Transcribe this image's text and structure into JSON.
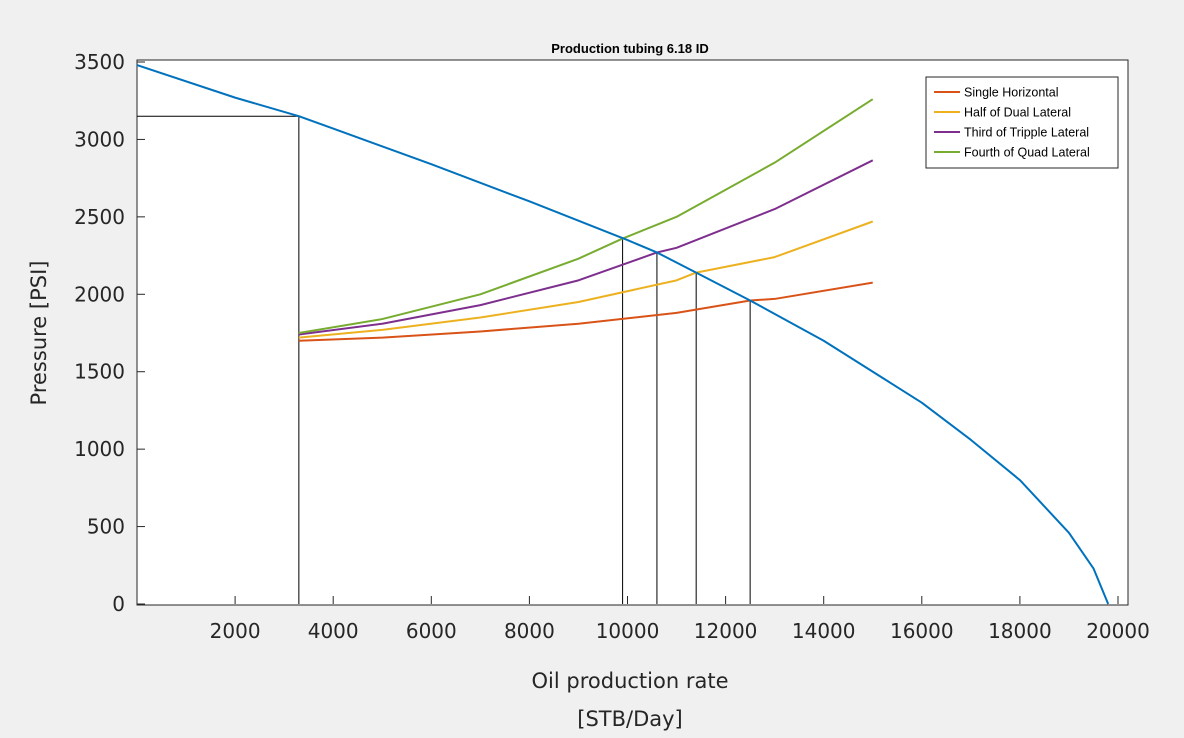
{
  "chart_data": {
    "type": "line",
    "title": "Production tubing 6.18 ID",
    "xlabel": [
      "Oil production rate",
      "[STB/Day]"
    ],
    "ylabel": "Pressure [PSI]",
    "xlim": [
      0,
      20000
    ],
    "ylim": [
      0,
      3500
    ],
    "xticks": [
      2000,
      4000,
      6000,
      8000,
      10000,
      12000,
      14000,
      16000,
      18000,
      20000
    ],
    "yticks": [
      0,
      500,
      1000,
      1500,
      2000,
      2500,
      3000,
      3500
    ],
    "grid": false,
    "legend_position": "top-right",
    "colors": {
      "ipr": "#0072BD",
      "single": "#D95319",
      "dual": "#EDB120",
      "triple": "#7E2F8E",
      "quad": "#77AC30",
      "guide": "#000000"
    },
    "ipr_curve": {
      "x": [
        0,
        2000,
        3300,
        4000,
        6000,
        8000,
        10000,
        10600,
        11400,
        12500,
        14000,
        16000,
        17000,
        18000,
        19000,
        19500,
        19800
      ],
      "y": [
        3480,
        3270,
        3150,
        3070,
        2840,
        2600,
        2350,
        2270,
        2140,
        1960,
        1700,
        1300,
        1060,
        800,
        460,
        230,
        0
      ]
    },
    "series": [
      {
        "name": "Single Horizontal",
        "x": [
          3300,
          5000,
          7000,
          9000,
          11000,
          12500,
          13000,
          15000
        ],
        "y": [
          1700,
          1720,
          1760,
          1810,
          1880,
          1960,
          1970,
          2075
        ]
      },
      {
        "name": "Half of Dual Lateral",
        "x": [
          3300,
          5000,
          7000,
          9000,
          11000,
          11400,
          13000,
          15000
        ],
        "y": [
          1720,
          1770,
          1850,
          1950,
          2090,
          2140,
          2240,
          2470
        ]
      },
      {
        "name": "Third of Tripple Lateral",
        "x": [
          3300,
          5000,
          7000,
          9000,
          10600,
          11000,
          13000,
          15000
        ],
        "y": [
          1740,
          1810,
          1930,
          2090,
          2270,
          2300,
          2550,
          2865
        ]
      },
      {
        "name": "Fourth of Quad Lateral",
        "x": [
          3300,
          5000,
          7000,
          9000,
          9900,
          11000,
          13000,
          15000
        ],
        "y": [
          1750,
          1840,
          2000,
          2230,
          2360,
          2500,
          2850,
          3260
        ]
      }
    ],
    "guides": {
      "horizontal": [
        {
          "x0": 0,
          "x1": 3300,
          "y": 3150
        }
      ],
      "vertical": [
        {
          "x": 3300,
          "y": 3150
        },
        {
          "x": 9900,
          "y": 2360
        },
        {
          "x": 10600,
          "y": 2270
        },
        {
          "x": 11400,
          "y": 2140
        },
        {
          "x": 12500,
          "y": 1960
        }
      ]
    }
  }
}
